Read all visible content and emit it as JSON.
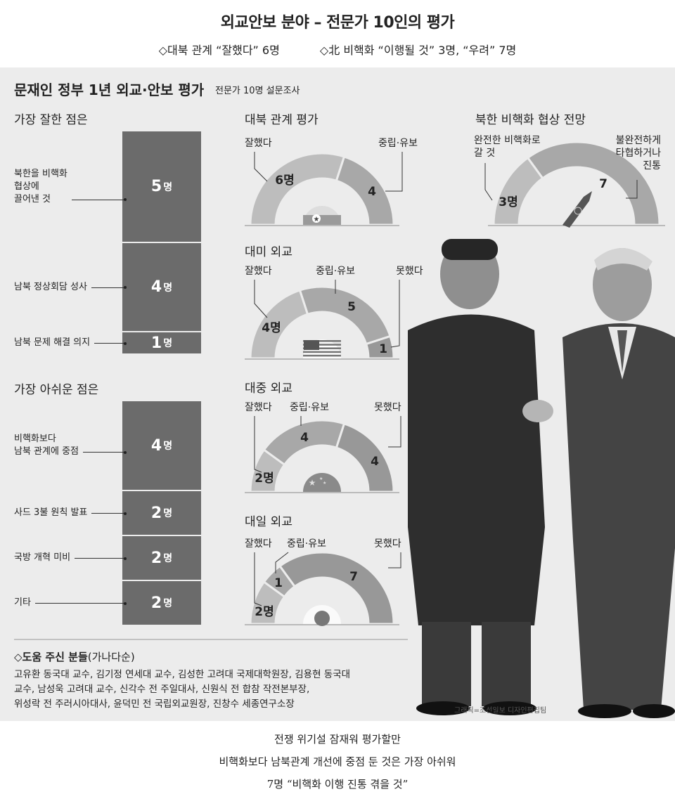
{
  "header": {
    "title": "외교안보 분야 – 전문가 10인의 평가",
    "sub1": "◇대북 관계 “잘했다” 6명",
    "sub2": "◇北 비핵화 “이행될 것” 3명, “우려” 7명"
  },
  "panel": {
    "title": "문재인 정부 1년 외교·안보 평가",
    "subtitle": "전문가 10명 설문조사"
  },
  "chart_data": [
    {
      "type": "bar",
      "stacked": true,
      "title": "가장 잘한 점은",
      "categories": [
        "북한을 비핵화 협상에 끌어낸 것",
        "남북 정상회담 성사",
        "남북 문제 해결 의지"
      ],
      "values": [
        5,
        4,
        1
      ],
      "value_labels": [
        "5",
        "4",
        "1"
      ],
      "unit": "명"
    },
    {
      "type": "bar",
      "stacked": true,
      "title": "가장 아쉬운 점은",
      "categories": [
        "비핵화보다 남북 관계에 중점",
        "사드 3불 원칙 발표",
        "국방 개혁 미비",
        "기타"
      ],
      "values": [
        4,
        2,
        2,
        2
      ],
      "value_labels": [
        "4",
        "2",
        "2",
        "2"
      ],
      "unit": "명"
    },
    {
      "type": "pie",
      "shape": "semicircle",
      "title": "대북 관계 평가",
      "categories": [
        "잘했다",
        "중립·유보"
      ],
      "values": [
        6,
        4
      ],
      "value_labels": [
        "6명",
        "4"
      ],
      "icon": "north-korea-flag-icon"
    },
    {
      "type": "pie",
      "shape": "semicircle",
      "title": "북한 비핵화 협상 전망",
      "categories": [
        "완전한 비핵화로 갈 것",
        "불완전하게 타협하거나 진통"
      ],
      "values": [
        3,
        7
      ],
      "value_labels": [
        "3명",
        "7"
      ],
      "icon": "missile-icon"
    },
    {
      "type": "pie",
      "shape": "semicircle",
      "title": "대미 외교",
      "categories": [
        "잘했다",
        "중립·유보",
        "못했다"
      ],
      "values": [
        4,
        5,
        1
      ],
      "value_labels": [
        "4명",
        "5",
        "1"
      ],
      "icon": "us-flag-icon"
    },
    {
      "type": "pie",
      "shape": "semicircle",
      "title": "대중 외교",
      "categories": [
        "잘했다",
        "중립·유보",
        "못했다"
      ],
      "values": [
        2,
        4,
        4
      ],
      "value_labels": [
        "2명",
        "4",
        "4"
      ],
      "icon": "china-flag-icon"
    },
    {
      "type": "pie",
      "shape": "semicircle",
      "title": "대일 외교",
      "categories": [
        "잘했다",
        "중립·유보",
        "못했다"
      ],
      "values": [
        2,
        1,
        7
      ],
      "value_labels": [
        "2명",
        "1",
        "7"
      ],
      "icon": "japan-flag-icon"
    }
  ],
  "advisors": {
    "title": "◇도움 주신 분들",
    "paren": "(가나다순)",
    "lines": [
      "고유환 동국대 교수, 김기정 연세대 교수, 김성한 고려대 국제대학원장, 김용현 동국대",
      "교수, 남성욱 고려대 교수, 신각수 전 주일대사, 신원식 전 합참 작전본부장,",
      "위성락 전 주러시아대사, 윤덕민 전 국립외교원장, 진창수 세종연구소장"
    ]
  },
  "credit": "그래픽=조선일보 디자인편집팀",
  "footer": {
    "lines": [
      "전쟁 위기설 잠재워 평가할만",
      "비핵화보다 남북관계 개선에 중점 둔 것은 가장 아쉬워",
      "7명 “비핵화 이행 진통 겪을 것”"
    ]
  }
}
